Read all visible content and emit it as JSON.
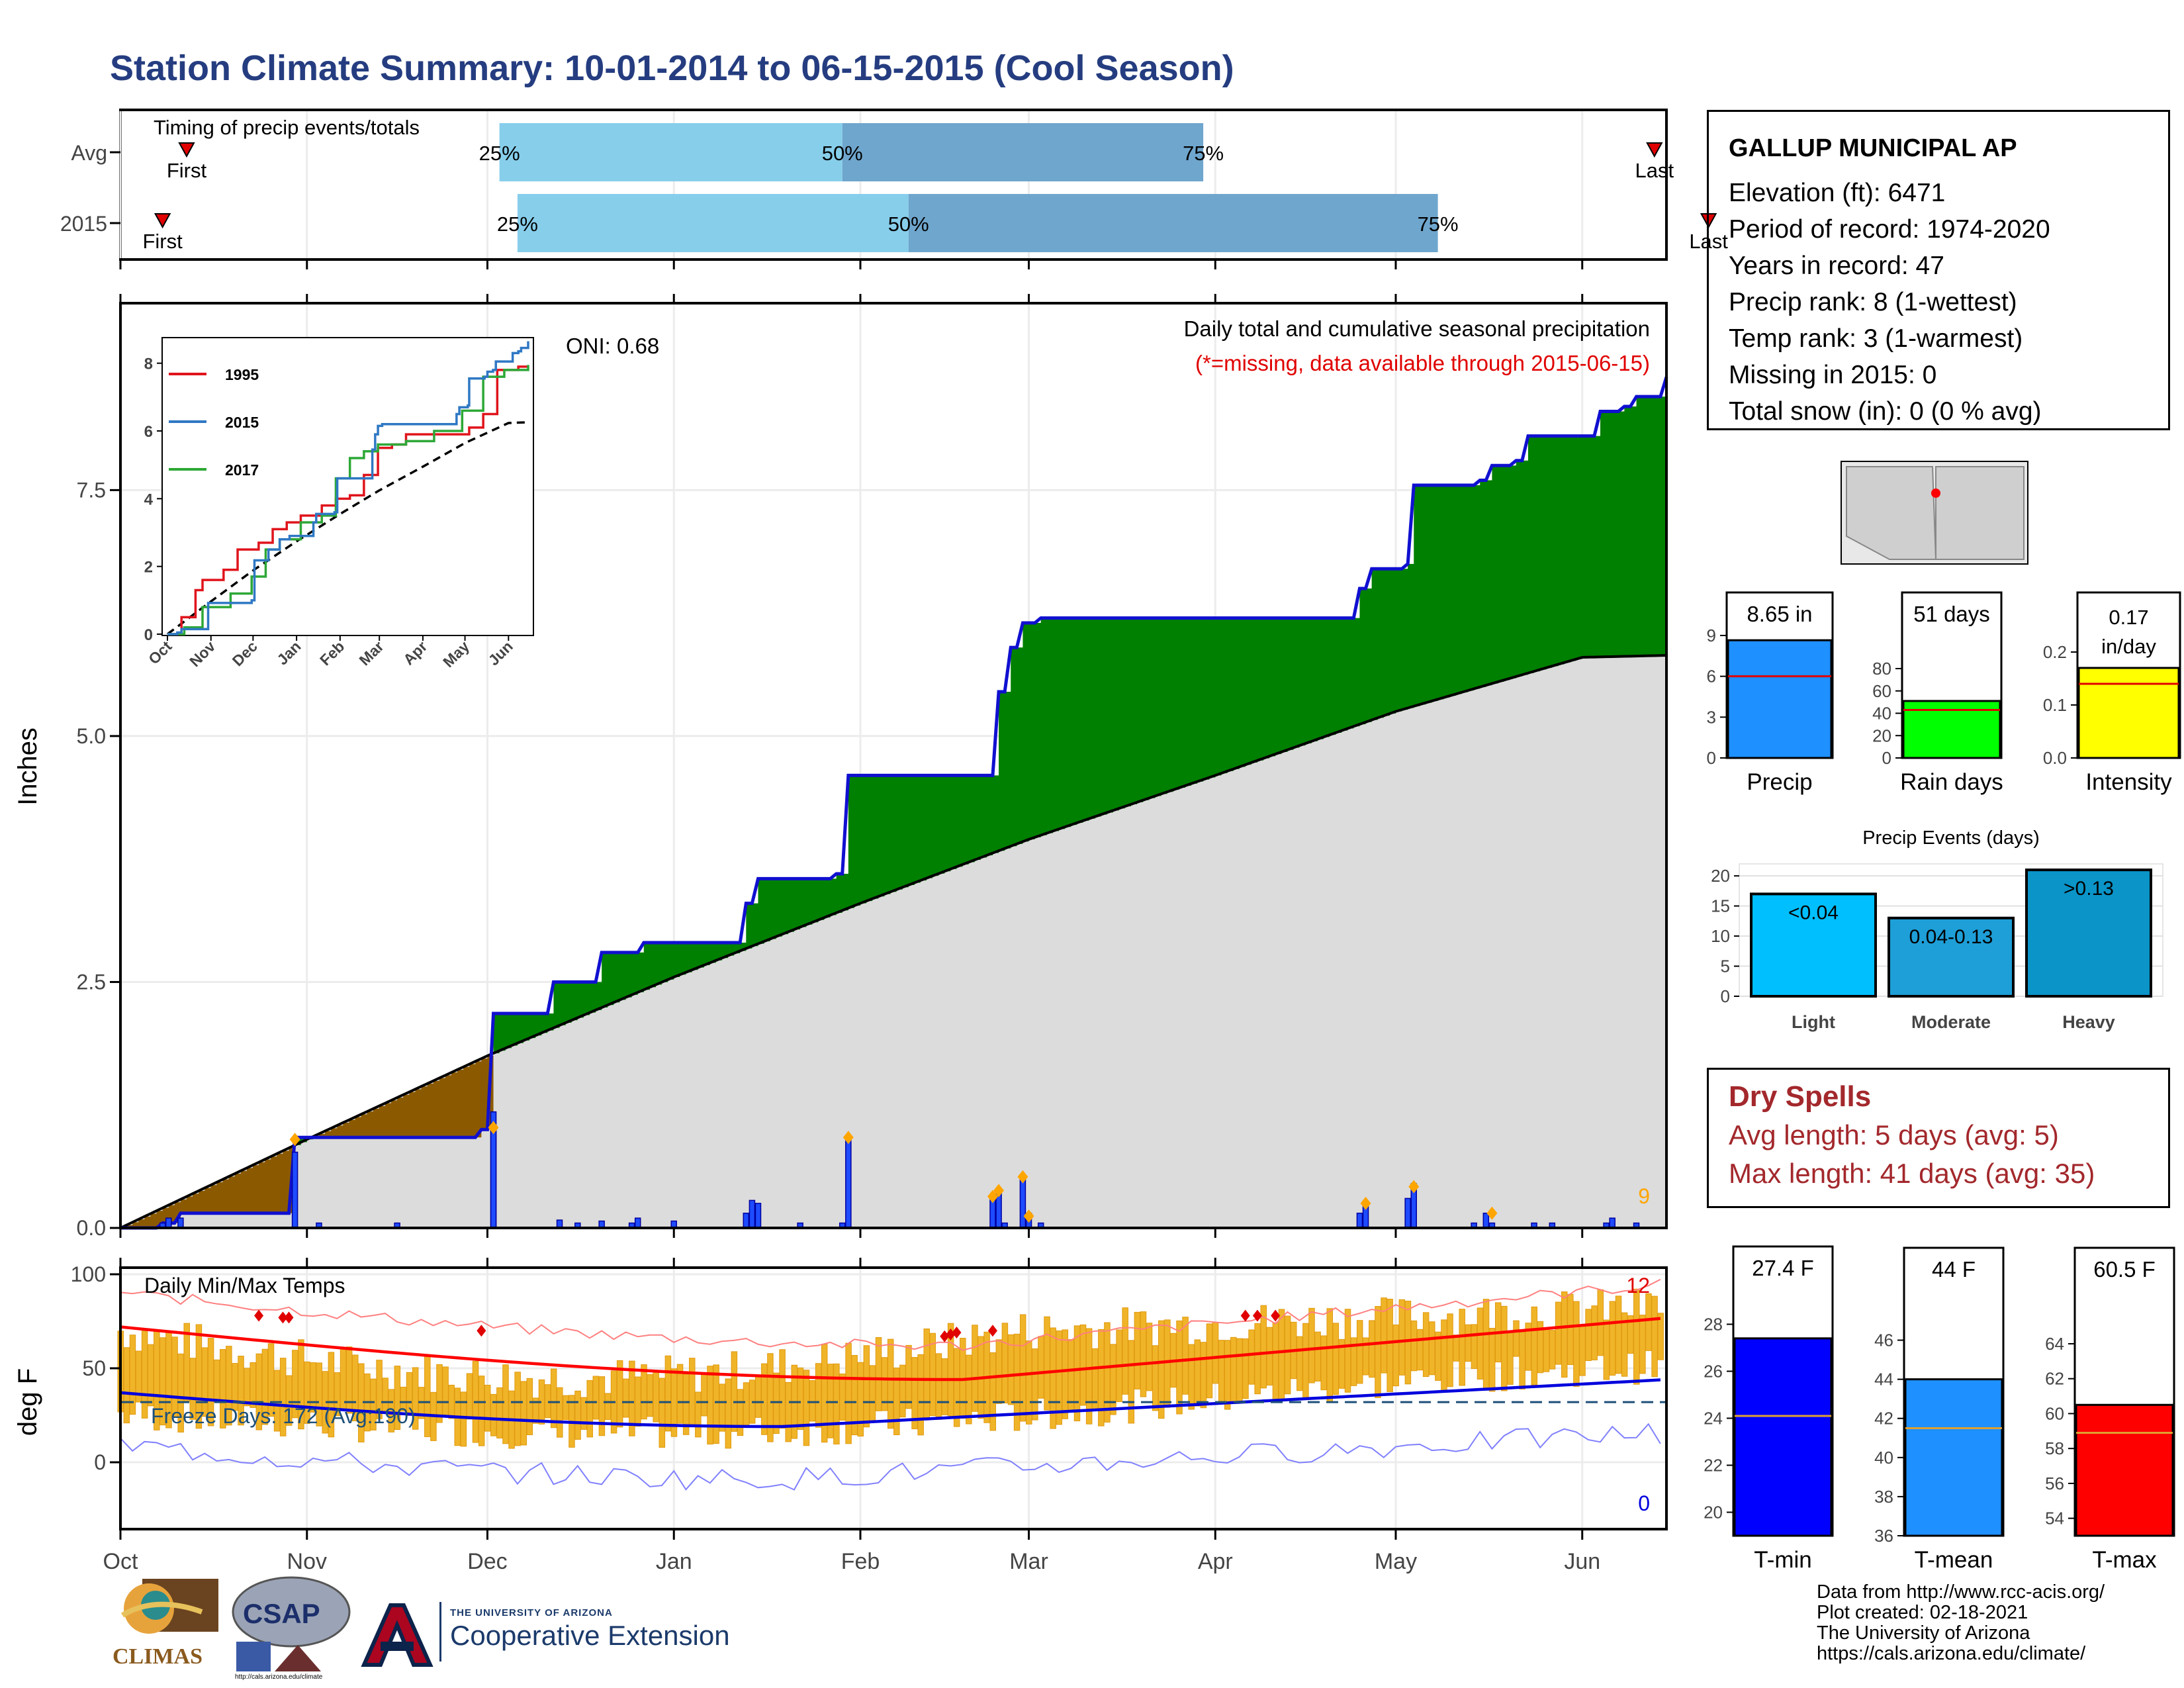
{
  "title": "Station Climate Summary: 10-01-2014 to 06-15-2015 (Cool Season)",
  "station": {
    "name": "GALLUP MUNICIPAL AP",
    "lines": [
      "Elevation (ft): 6471",
      "Period of record: 1974-2020",
      "Years in record: 47",
      "Precip rank: 8 (1-wettest)",
      "Temp rank: 3 (1-warmest)",
      "Missing in 2015: 0",
      "Total snow (in): 0 (0 % avg)"
    ]
  },
  "months": [
    "Oct",
    "Nov",
    "Dec",
    "Jan",
    "Feb",
    "Mar",
    "Apr",
    "May",
    "Jun"
  ],
  "timing_panel": {
    "label": "Timing of precip events/totals",
    "rows": [
      {
        "label": "Avg",
        "first_day": 11,
        "q25": 63,
        "q50": 120,
        "q75": 180,
        "last_day": 255,
        "first_text": "First",
        "last_text": "Last",
        "pct25": "25%",
        "pct50": "50%",
        "pct75": "75%"
      },
      {
        "label": "2015",
        "first_day": 7,
        "q25": 66,
        "q50": 131,
        "q75": 219,
        "last_day": 264,
        "first_text": "First",
        "last_text": "Last",
        "pct25": "25%",
        "pct50": "50%",
        "pct75": "75%"
      }
    ],
    "colors": {
      "light": "#87ceeb",
      "dark": "#6fa6cd"
    }
  },
  "precip_panel": {
    "ylabel": "Inches",
    "yticks": [
      "0.0",
      "2.5",
      "5.0",
      "7.5"
    ],
    "ylim": [
      0,
      9.4
    ],
    "oni": "ONI: 0.68",
    "subtitle": "Daily total and cumulative seasonal precipitation",
    "missing_note": "(*=missing, data available through 2015-06-15)",
    "corner_count": "9",
    "cumulative_2015_steps": [
      [
        0,
        0
      ],
      [
        8,
        0.08
      ],
      [
        18,
        0.25
      ],
      [
        54,
        0.92
      ],
      [
        103,
        0.95
      ],
      [
        107,
        1.05
      ],
      [
        145,
        2.1
      ],
      [
        160,
        2.4
      ],
      [
        170,
        2.75
      ],
      [
        178,
        2.9
      ],
      [
        205,
        3.3
      ],
      [
        210,
        3.55
      ],
      [
        225,
        3.6
      ],
      [
        245,
        4.5
      ],
      [
        292,
        4.55
      ],
      [
        320,
        5.45
      ],
      [
        325,
        5.9
      ],
      [
        335,
        6.15
      ],
      [
        345,
        6.2
      ],
      [
        380,
        6.2
      ],
      [
        458,
        6.2
      ],
      [
        462,
        6.5
      ],
      [
        468,
        6.7
      ],
      [
        474,
        6.7
      ],
      [
        510,
        6.75
      ],
      [
        520,
        7.6
      ],
      [
        530,
        7.7
      ],
      [
        545,
        7.75
      ],
      [
        560,
        7.8
      ],
      [
        575,
        8.05
      ],
      [
        590,
        8.1
      ],
      [
        598,
        8.3
      ],
      [
        613,
        8.35
      ],
      [
        620,
        8.45
      ],
      [
        630,
        8.65
      ]
    ],
    "note_steps": "x values in cumulative_2015_steps are day-of-season; see chart_data",
    "fill_above": "#008000",
    "fill_below": "#8b5a00",
    "normal_fill": "#dcdcdc"
  },
  "inset": {
    "yticks": [
      "0",
      "2",
      "4",
      "6",
      "8"
    ],
    "xticks": [
      "Oct",
      "Nov",
      "Dec",
      "Jan",
      "Feb",
      "Mar",
      "Apr",
      "May",
      "Jun"
    ],
    "legend": [
      {
        "name": "1995",
        "color": "#e0141c"
      },
      {
        "name": "2015",
        "color": "#2f78c4"
      },
      {
        "name": "2017",
        "color": "#2da837"
      }
    ]
  },
  "bar_panels": {
    "precip": {
      "label": "Precip",
      "value_text": "8.65 in",
      "value": 8.65,
      "avg": 6.0,
      "ylim": [
        0,
        9
      ],
      "yticks": [
        "0",
        "3",
        "6",
        "9"
      ],
      "color": "#1e90ff"
    },
    "rain_days": {
      "label": "Rain days",
      "value_text": "51 days",
      "value": 51,
      "avg": 43,
      "ylim": [
        0,
        80
      ],
      "yticks": [
        "0",
        "20",
        "40",
        "60",
        "80"
      ],
      "color": "#00ff00"
    },
    "intensity": {
      "label": "Intensity",
      "value_text": "0.17 in/day",
      "value": 0.17,
      "avg": 0.14,
      "ylim": [
        0,
        0.2
      ],
      "yticks": [
        "0.0",
        "0.1",
        "0.2"
      ],
      "color": "#ffff00"
    }
  },
  "events_panel": {
    "title": "Precip Events (days)",
    "yticks": [
      "0",
      "5",
      "10",
      "15",
      "20"
    ],
    "bars": [
      {
        "label": "Light",
        "value": 17,
        "text": "<0.04",
        "color": "#00bfff"
      },
      {
        "label": "Moderate",
        "value": 13,
        "text": "0.04-0.13",
        "color": "#1e9fd8"
      },
      {
        "label": "Heavy",
        "value": 21,
        "text": ">0.13",
        "color": "#0a94c8"
      }
    ]
  },
  "dry_spells": {
    "title": "Dry Spells",
    "avg_line": "Avg length: 5 days (avg: 5)",
    "max_line": "Max length: 41 days (avg: 35)"
  },
  "temp_panel": {
    "ylabel": "deg F",
    "title": "Daily Min/Max Temps",
    "yticks": [
      "0",
      "50",
      "100"
    ],
    "freeze": "Freeze Days: 172 (Avg:190)",
    "hot_count": "12",
    "cold_count": "0"
  },
  "temp_bars": {
    "tmin": {
      "label": "T-min",
      "value_text": "27.4 F",
      "value": 27.4,
      "avg": 24.1,
      "ylim": [
        19,
        29
      ],
      "yticks": [
        "20",
        "22",
        "24",
        "26",
        "28"
      ],
      "color": "#0000ff"
    },
    "tmean": {
      "label": "T-mean",
      "value_text": "44 F",
      "value": 44,
      "avg": 41.5,
      "ylim": [
        36,
        47
      ],
      "yticks": [
        "36",
        "38",
        "40",
        "42",
        "44",
        "46"
      ],
      "color": "#1e90ff"
    },
    "tmax": {
      "label": "T-max",
      "value_text": "60.5 F",
      "value": 60.5,
      "avg": 58.9,
      "ylim": [
        53,
        64
      ],
      "yticks": [
        "54",
        "56",
        "58",
        "60",
        "62",
        "64"
      ],
      "color": "#ff0000"
    }
  },
  "credits": [
    "Data from http://www.rcc-acis.org/",
    "Plot created: 02-18-2021",
    "The University of Arizona",
    "https://cals.arizona.edu/climate/"
  ],
  "logos": {
    "climas": "CLIMAS",
    "csap": "CSAP",
    "csap_url": "http://cals.arizona.edu/climate",
    "ua_small": "THE UNIVERSITY OF ARIZONA",
    "ua_big": "Cooperative Extension"
  },
  "chart_data": [
    {
      "type": "area",
      "title": "Daily total and cumulative seasonal precipitation",
      "ylabel": "Inches",
      "ylim": [
        0,
        9.4
      ],
      "x": [
        "Oct",
        "Nov",
        "Dec",
        "Jan",
        "Feb",
        "Mar",
        "Apr",
        "May",
        "Jun"
      ],
      "series": [
        {
          "name": "2015 cumulative",
          "values": [
            0,
            0.92,
            1.05,
            2.9,
            4.5,
            6.2,
            6.2,
            7.6,
            8.65
          ]
        },
        {
          "name": "average cumulative",
          "values": [
            0,
            0.9,
            1.75,
            2.55,
            3.3,
            3.95,
            4.6,
            5.25,
            5.8
          ]
        }
      ]
    },
    {
      "type": "bar",
      "title": "Precip Events (days)",
      "categories": [
        "Light",
        "Moderate",
        "Heavy"
      ],
      "values": [
        17,
        13,
        21
      ]
    },
    {
      "type": "bar",
      "categories": [
        "Precip",
        "Rain days",
        "Intensity"
      ],
      "values": [
        8.65,
        51,
        0.17
      ]
    },
    {
      "type": "bar",
      "categories": [
        "T-min",
        "T-mean",
        "T-max"
      ],
      "values": [
        27.4,
        44,
        60.5
      ]
    }
  ]
}
